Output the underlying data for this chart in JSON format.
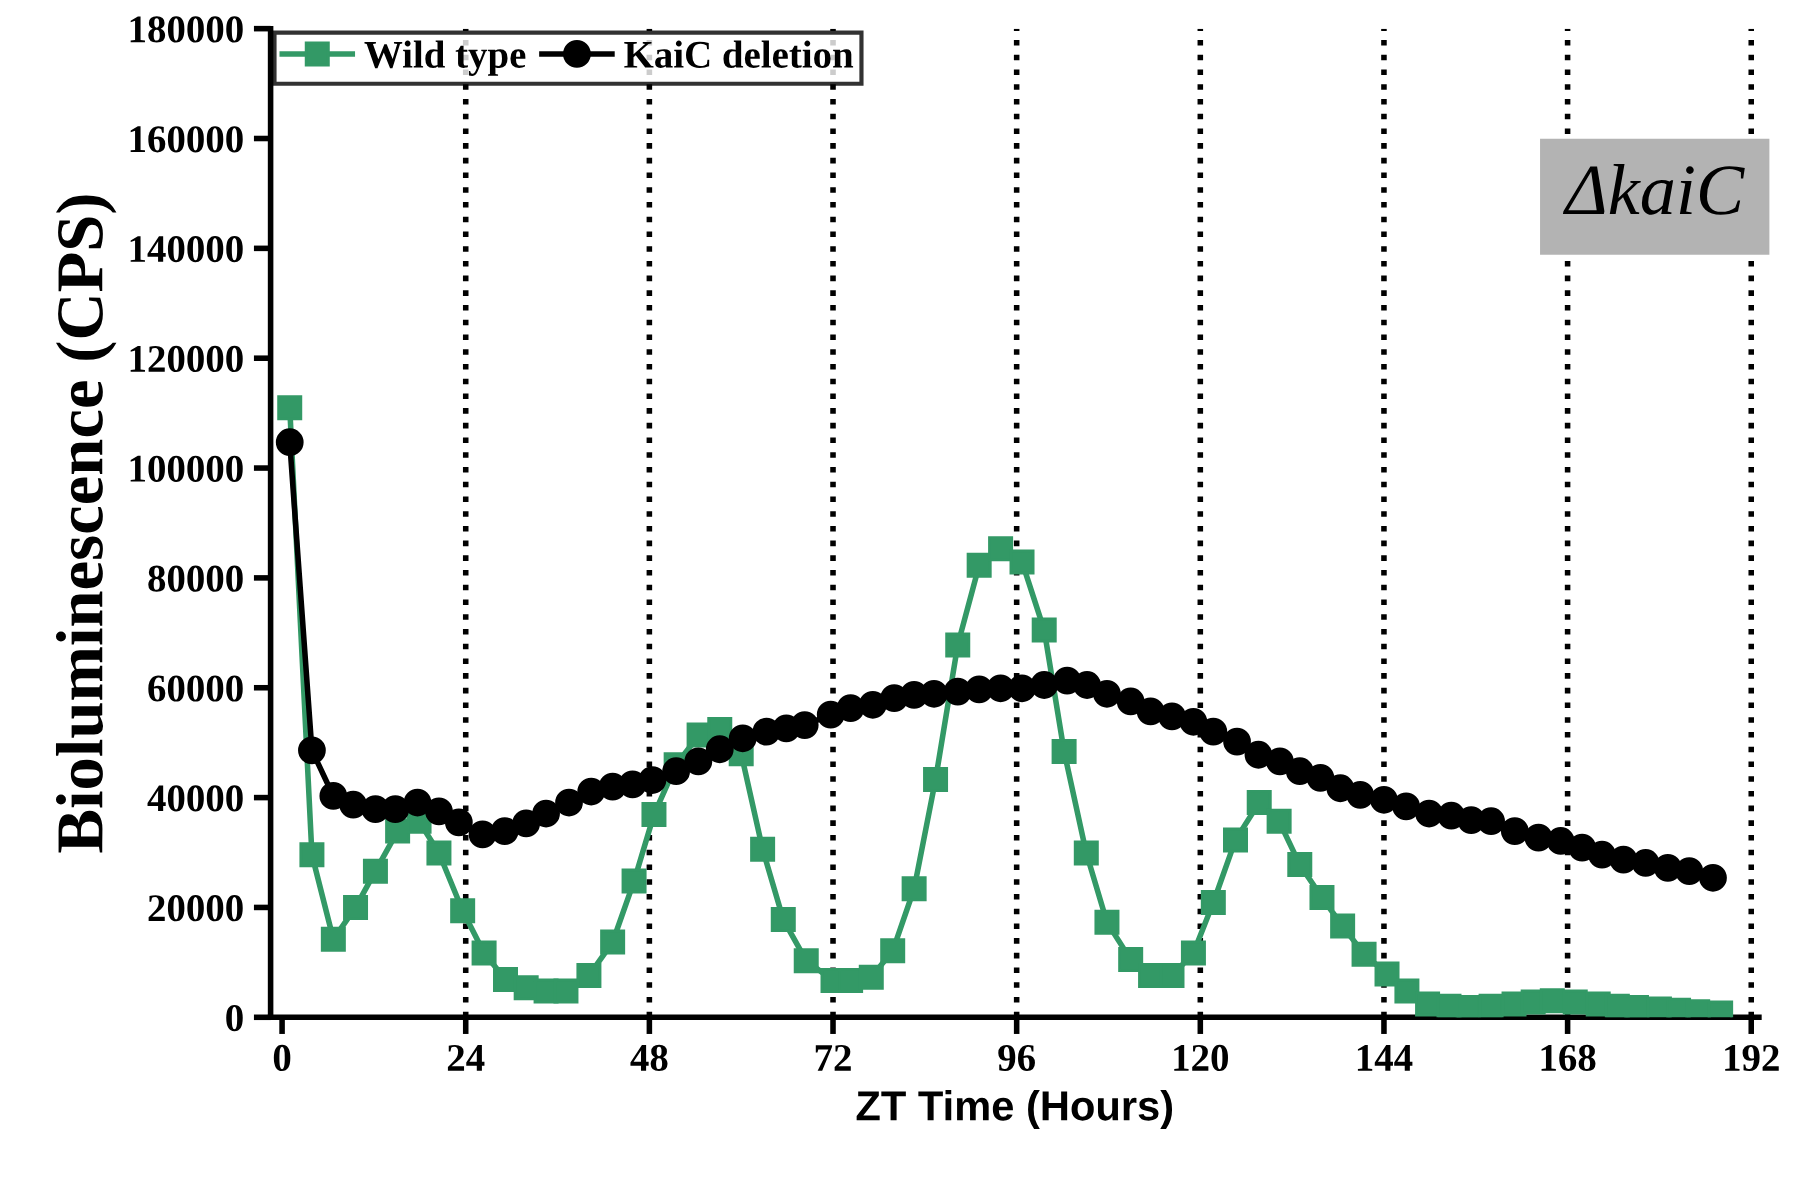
{
  "chart_data": {
    "type": "line",
    "xlabel": "ZT Time (Hours)",
    "ylabel": "Bioluminescence (CPS)",
    "annotations": [
      "ΔkaiC"
    ],
    "series": [
      {
        "name": "Wild type",
        "color": "#339966",
        "marker": "square",
        "x": [
          1,
          3.9,
          6.7,
          9.6,
          12.2,
          15.1,
          17.9,
          20.5,
          23.6,
          26.4,
          29.2,
          31.9,
          34.5,
          37.1,
          40.1,
          43.2,
          46.0,
          48.6,
          51.5,
          54.5,
          57.2,
          60.0,
          62.8,
          65.5,
          68.5,
          72,
          74.3,
          77,
          79.8,
          82.6,
          85.4,
          88.3,
          91.1,
          93.9,
          96.7,
          99.6,
          102.2,
          105.1,
          107.8,
          110.9,
          113.5,
          116.3,
          119.1,
          121.7,
          124.6,
          127.7,
          130.3,
          133,
          135.9,
          138.6,
          141.4,
          144.4,
          147,
          149.7,
          152.5,
          155,
          158,
          161,
          163.5,
          166,
          169,
          172,
          174.5,
          177,
          180,
          182.5,
          185,
          188
        ],
        "values": [
          111000,
          29600,
          14200,
          20000,
          26600,
          33900,
          35700,
          29900,
          19400,
          11700,
          6900,
          5400,
          4800,
          4800,
          7600,
          13700,
          24800,
          36900,
          46000,
          51400,
          52400,
          48000,
          30600,
          17800,
          10300,
          6700,
          6700,
          7300,
          12100,
          23400,
          43300,
          67800,
          82300,
          85300,
          82900,
          70500,
          48400,
          29900,
          17300,
          10500,
          7600,
          7600,
          11700,
          20900,
          32300,
          39100,
          35700,
          27800,
          21800,
          16600,
          11500,
          7900,
          4800,
          2400,
          2000,
          1800,
          2000,
          2400,
          2800,
          3000,
          2800,
          2400,
          2000,
          1800,
          1500,
          1300,
          1000,
          800
        ]
      },
      {
        "name": "KaiC deletion",
        "color": "#000000",
        "marker": "circle",
        "x": [
          1,
          3.9,
          6.7,
          9.3,
          12.2,
          14.8,
          17.7,
          20.5,
          23.1,
          26.2,
          29.1,
          31.9,
          34.5,
          37.5,
          40.4,
          43.2,
          45.8,
          48.4,
          51.5,
          54.4,
          57.2,
          60.2,
          63.3,
          65.9,
          68.3,
          71.7,
          74.3,
          77.2,
          80,
          82.6,
          85.2,
          88.3,
          91.1,
          93.9,
          96.7,
          99.6,
          102.6,
          105.2,
          107.8,
          110.9,
          113.5,
          116.3,
          119.1,
          121.7,
          124.8,
          127.6,
          130.4,
          133,
          135.7,
          138.3,
          140.9,
          144,
          146.9,
          149.9,
          152.8,
          155.4,
          158,
          161.1,
          164.2,
          167.1,
          169.9,
          172.5,
          175.3,
          178.2,
          181.1,
          183.9,
          187
        ],
        "values": [
          104700,
          48600,
          40300,
          38700,
          37900,
          37900,
          39100,
          37500,
          35500,
          33300,
          33900,
          35300,
          37100,
          39100,
          41100,
          42000,
          42400,
          43200,
          44800,
          46600,
          48800,
          50800,
          52000,
          52600,
          53200,
          55100,
          56300,
          56900,
          58100,
          58700,
          58900,
          59300,
          59700,
          59900,
          59900,
          60500,
          61300,
          60500,
          58900,
          57500,
          55700,
          54800,
          53800,
          52000,
          50200,
          47800,
          46600,
          44800,
          43600,
          41700,
          40500,
          39600,
          38400,
          37100,
          36700,
          35900,
          35700,
          33900,
          32700,
          32100,
          30900,
          29600,
          28700,
          28100,
          27200,
          26600,
          25400
        ]
      }
    ],
    "ref_lines": [
      {
        "axis": "x",
        "value": 24,
        "line_style": "dotted",
        "color": "#000000"
      },
      {
        "axis": "x",
        "value": 48,
        "line_style": "dotted",
        "color": "#000000"
      },
      {
        "axis": "x",
        "value": 72,
        "line_style": "dotted",
        "color": "#000000"
      },
      {
        "axis": "x",
        "value": 96,
        "line_style": "dotted",
        "color": "#000000"
      },
      {
        "axis": "x",
        "value": 120,
        "line_style": "dotted",
        "color": "#000000"
      },
      {
        "axis": "x",
        "value": 144,
        "line_style": "dotted",
        "color": "#000000"
      },
      {
        "axis": "x",
        "value": 168,
        "line_style": "dotted",
        "color": "#000000"
      },
      {
        "axis": "x",
        "value": 192,
        "line_style": "dotted",
        "color": "#000000"
      }
    ],
    "xlim": [
      -1.5,
      193
    ],
    "ylim": [
      0,
      180000
    ],
    "xticks": [
      0,
      24,
      48,
      72,
      96,
      120,
      144,
      168,
      192
    ],
    "yticks": [
      0,
      20000,
      40000,
      60000,
      80000,
      100000,
      120000,
      140000,
      160000,
      180000
    ],
    "grid": false,
    "legend": "top left",
    "line_style": "solid"
  }
}
